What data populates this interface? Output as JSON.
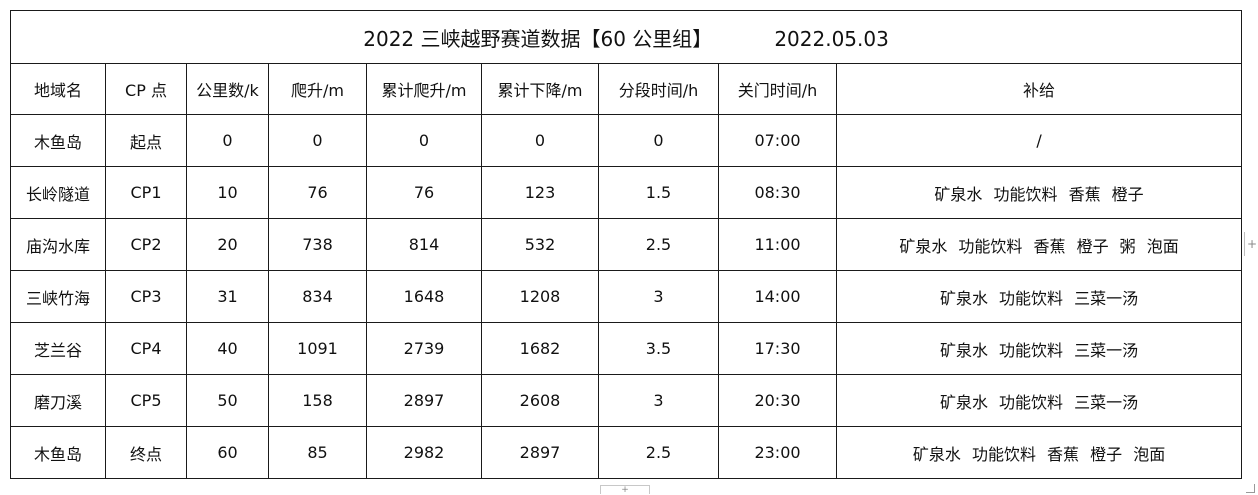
{
  "title": {
    "main": "2022 三峡越野赛道数据【60 公里组】",
    "date": "2022.05.03"
  },
  "headers": [
    "地域名",
    "CP 点",
    "公里数/k",
    "爬升/m",
    "累计爬升/m",
    "累计下降/m",
    "分段时间/h",
    "关门时间/h",
    "补给"
  ],
  "rows": [
    [
      "木鱼岛",
      "起点",
      "0",
      "0",
      "0",
      "0",
      "0",
      "07:00",
      "/"
    ],
    [
      "长岭隧道",
      "CP1",
      "10",
      "76",
      "76",
      "123",
      "1.5",
      "08:30",
      "矿泉水 功能饮料 香蕉 橙子"
    ],
    [
      "庙沟水库",
      "CP2",
      "20",
      "738",
      "814",
      "532",
      "2.5",
      "11:00",
      "矿泉水 功能饮料 香蕉 橙子 粥 泡面"
    ],
    [
      "三峡竹海",
      "CP3",
      "31",
      "834",
      "1648",
      "1208",
      "3",
      "14:00",
      "矿泉水 功能饮料 三菜一汤"
    ],
    [
      "芝兰谷",
      "CP4",
      "40",
      "1091",
      "2739",
      "1682",
      "3.5",
      "17:30",
      "矿泉水 功能饮料 三菜一汤"
    ],
    [
      "磨刀溪",
      "CP5",
      "50",
      "158",
      "2897",
      "2608",
      "3",
      "20:30",
      "矿泉水 功能饮料 三菜一汤"
    ],
    [
      "木鱼岛",
      "终点",
      "60",
      "85",
      "2982",
      "2897",
      "2.5",
      "23:00",
      "矿泉水 功能饮料 香蕉 橙子 泡面"
    ]
  ],
  "ui": {
    "edge_plus": "+",
    "bottom_tab": "+"
  }
}
